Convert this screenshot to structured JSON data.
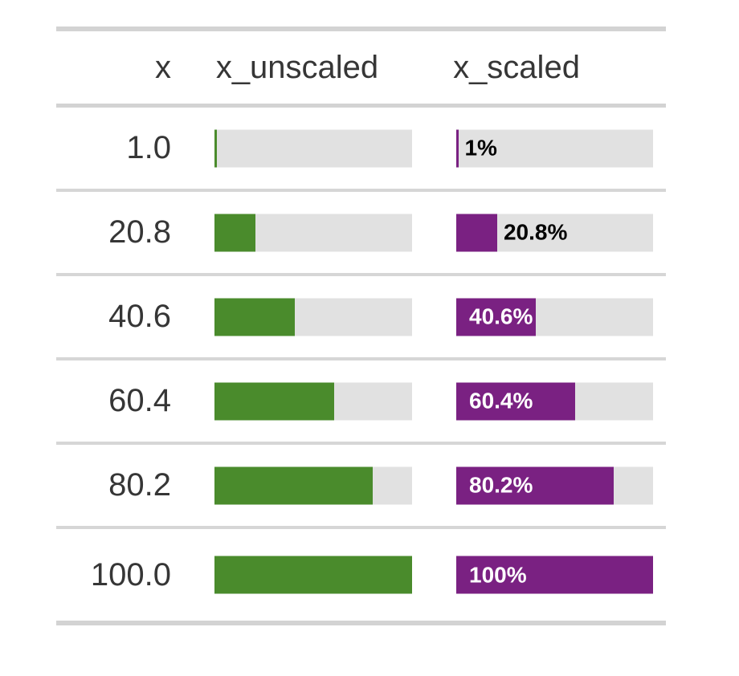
{
  "table": {
    "columns": [
      {
        "key": "x",
        "label": "x"
      },
      {
        "key": "x_unscaled",
        "label": "x_unscaled"
      },
      {
        "key": "x_scaled",
        "label": "x_scaled"
      }
    ],
    "rows": [
      {
        "x_display": "1.0",
        "pct": 1,
        "label": "1%",
        "label_inside": false
      },
      {
        "x_display": "20.8",
        "pct": 20.8,
        "label": "20.8%",
        "label_inside": false
      },
      {
        "x_display": "40.6",
        "pct": 40.6,
        "label": "40.6%",
        "label_inside": true
      },
      {
        "x_display": "60.4",
        "pct": 60.4,
        "label": "60.4%",
        "label_inside": true
      },
      {
        "x_display": "80.2",
        "pct": 80.2,
        "label": "80.2%",
        "label_inside": true
      },
      {
        "x_display": "100.0",
        "pct": 100,
        "label": "100%",
        "label_inside": true
      }
    ]
  },
  "colors": {
    "unscaled_fill": "#4A8B2C",
    "scaled_fill": "#7A2182",
    "bar_background": "#E1E1E1",
    "border": "#D3D3D3",
    "header_text": "#363636",
    "label_outside": "#000000",
    "label_inside": "#FFFFFF"
  },
  "chart_data": {
    "type": "table",
    "title": "",
    "columns": [
      "x",
      "x_unscaled",
      "x_scaled"
    ],
    "x": [
      1.0,
      20.8,
      40.6,
      60.4,
      80.2,
      100.0
    ],
    "series": [
      {
        "name": "x_unscaled",
        "render": "bar",
        "values": [
          1.0,
          20.8,
          40.6,
          60.4,
          80.2,
          100.0
        ],
        "color": "#4A8B2C",
        "labels": null
      },
      {
        "name": "x_scaled",
        "render": "bar",
        "values": [
          1.0,
          20.8,
          40.6,
          60.4,
          80.2,
          100.0
        ],
        "color": "#7A2182",
        "labels": [
          "1%",
          "20.8%",
          "40.6%",
          "60.4%",
          "80.2%",
          "100%"
        ]
      }
    ],
    "xlim": [
      0,
      100
    ],
    "grid": false,
    "legend": false,
    "bar_background": "#E1E1E1"
  }
}
